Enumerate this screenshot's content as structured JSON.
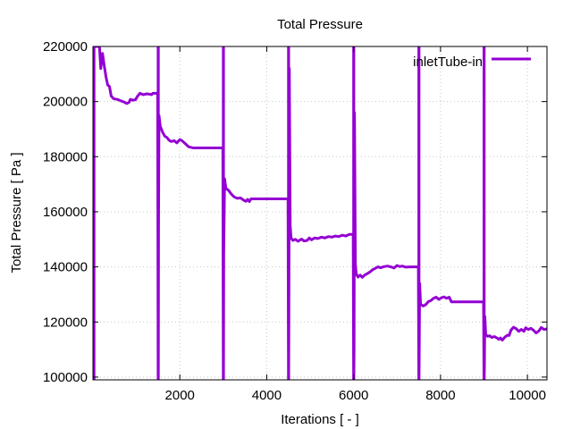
{
  "chart_data": {
    "type": "line",
    "title": "Total Pressure",
    "xlabel": "Iterations [ - ]",
    "ylabel": "Total Pressure [ Pa ]",
    "xlim": [
      0,
      10450
    ],
    "ylim": [
      99000,
      220000
    ],
    "xticks": [
      2000,
      4000,
      6000,
      8000,
      10000
    ],
    "xtick_labels": [
      "2000",
      "4000",
      "6000",
      "8000",
      "10000"
    ],
    "yticks": [
      100000,
      120000,
      140000,
      160000,
      180000,
      200000,
      220000
    ],
    "ytick_labels": [
      "100000",
      "120000",
      "140000",
      "160000",
      "180000",
      "200000",
      "220000"
    ],
    "grid": true,
    "legend_position": "top-right",
    "series": [
      {
        "name": "inletTube-in",
        "color": "#9400d3",
        "points": [
          [
            5,
            99000
          ],
          [
            5,
            220000
          ],
          [
            15,
            220000
          ],
          [
            15,
            99000
          ],
          [
            25,
            99000
          ],
          [
            25,
            220000
          ],
          [
            30,
            220000
          ],
          [
            150,
            220000
          ],
          [
            180,
            212000
          ],
          [
            220,
            217500
          ],
          [
            260,
            213000
          ],
          [
            300,
            209000
          ],
          [
            340,
            206000
          ],
          [
            380,
            205500
          ],
          [
            420,
            202000
          ],
          [
            480,
            201000
          ],
          [
            560,
            200800
          ],
          [
            640,
            200300
          ],
          [
            720,
            199800
          ],
          [
            780,
            199300
          ],
          [
            830,
            199700
          ],
          [
            860,
            200800
          ],
          [
            920,
            200500
          ],
          [
            980,
            200700
          ],
          [
            1020,
            201800
          ],
          [
            1080,
            203000
          ],
          [
            1160,
            202500
          ],
          [
            1240,
            202800
          ],
          [
            1300,
            202700
          ],
          [
            1350,
            202500
          ],
          [
            1380,
            203000
          ],
          [
            1450,
            203000
          ],
          [
            1490,
            203000
          ],
          [
            1500,
            99000
          ],
          [
            1500,
            220000
          ],
          [
            1505,
            220000
          ],
          [
            1505,
            99000
          ],
          [
            1510,
            155000
          ],
          [
            1520,
            195000
          ],
          [
            1550,
            191000
          ],
          [
            1600,
            189000
          ],
          [
            1650,
            187500
          ],
          [
            1700,
            187000
          ],
          [
            1750,
            186000
          ],
          [
            1800,
            185500
          ],
          [
            1870,
            185800
          ],
          [
            1930,
            185000
          ],
          [
            2000,
            186200
          ],
          [
            2050,
            185800
          ],
          [
            2120,
            184800
          ],
          [
            2200,
            183600
          ],
          [
            2300,
            183200
          ],
          [
            2500,
            183200
          ],
          [
            2700,
            183200
          ],
          [
            2990,
            183200
          ],
          [
            3000,
            99000
          ],
          [
            3000,
            220000
          ],
          [
            3005,
            220000
          ],
          [
            3005,
            99000
          ],
          [
            3010,
            145000
          ],
          [
            3030,
            172000
          ],
          [
            3060,
            168500
          ],
          [
            3120,
            167800
          ],
          [
            3180,
            166500
          ],
          [
            3250,
            165400
          ],
          [
            3320,
            164900
          ],
          [
            3400,
            165000
          ],
          [
            3460,
            164300
          ],
          [
            3520,
            163800
          ],
          [
            3560,
            164500
          ],
          [
            3600,
            163700
          ],
          [
            3640,
            164700
          ],
          [
            3800,
            164700
          ],
          [
            4100,
            164700
          ],
          [
            4490,
            164700
          ],
          [
            4500,
            99000
          ],
          [
            4500,
            220000
          ],
          [
            4505,
            220000
          ],
          [
            4505,
            99000
          ],
          [
            4510,
            123000
          ],
          [
            4520,
            212000
          ],
          [
            4540,
            155000
          ],
          [
            4560,
            150500
          ],
          [
            4600,
            149600
          ],
          [
            4660,
            150000
          ],
          [
            4720,
            149300
          ],
          [
            4800,
            150100
          ],
          [
            4860,
            149400
          ],
          [
            4930,
            149600
          ],
          [
            4980,
            150500
          ],
          [
            5030,
            149800
          ],
          [
            5100,
            150500
          ],
          [
            5180,
            150300
          ],
          [
            5260,
            150800
          ],
          [
            5340,
            150500
          ],
          [
            5420,
            151000
          ],
          [
            5500,
            150800
          ],
          [
            5580,
            151200
          ],
          [
            5660,
            151000
          ],
          [
            5740,
            151500
          ],
          [
            5820,
            151200
          ],
          [
            5900,
            151800
          ],
          [
            5990,
            151800
          ],
          [
            6000,
            99000
          ],
          [
            6000,
            220000
          ],
          [
            6005,
            220000
          ],
          [
            6005,
            99000
          ],
          [
            6010,
            110000
          ],
          [
            6020,
            196000
          ],
          [
            6040,
            141000
          ],
          [
            6060,
            137500
          ],
          [
            6100,
            136300
          ],
          [
            6150,
            137000
          ],
          [
            6200,
            136200
          ],
          [
            6260,
            137100
          ],
          [
            6320,
            137600
          ],
          [
            6380,
            138200
          ],
          [
            6440,
            139000
          ],
          [
            6500,
            139500
          ],
          [
            6560,
            140000
          ],
          [
            6620,
            139700
          ],
          [
            6700,
            140100
          ],
          [
            6780,
            140300
          ],
          [
            6860,
            140000
          ],
          [
            6930,
            139600
          ],
          [
            7000,
            140500
          ],
          [
            7060,
            140100
          ],
          [
            7120,
            140300
          ],
          [
            7200,
            139900
          ],
          [
            7300,
            140000
          ],
          [
            7490,
            140000
          ],
          [
            7500,
            99000
          ],
          [
            7500,
            220000
          ],
          [
            7505,
            220000
          ],
          [
            7505,
            99000
          ],
          [
            7510,
            110000
          ],
          [
            7520,
            134000
          ],
          [
            7540,
            126500
          ],
          [
            7600,
            125800
          ],
          [
            7660,
            126300
          ],
          [
            7720,
            127400
          ],
          [
            7780,
            127800
          ],
          [
            7840,
            128600
          ],
          [
            7900,
            129000
          ],
          [
            7960,
            128200
          ],
          [
            8020,
            128800
          ],
          [
            8080,
            129100
          ],
          [
            8140,
            128600
          ],
          [
            8200,
            129000
          ],
          [
            8250,
            127300
          ],
          [
            8400,
            127300
          ],
          [
            8700,
            127300
          ],
          [
            8990,
            127300
          ],
          [
            9000,
            99000
          ],
          [
            9000,
            220000
          ],
          [
            9005,
            220000
          ],
          [
            9005,
            99000
          ],
          [
            9010,
            104000
          ],
          [
            9020,
            122000
          ],
          [
            9040,
            115500
          ],
          [
            9080,
            114800
          ],
          [
            9130,
            115000
          ],
          [
            9180,
            114400
          ],
          [
            9240,
            114700
          ],
          [
            9300,
            114200
          ],
          [
            9340,
            113700
          ],
          [
            9380,
            114200
          ],
          [
            9420,
            113400
          ],
          [
            9480,
            114500
          ],
          [
            9540,
            115200
          ],
          [
            9580,
            115100
          ],
          [
            9620,
            117000
          ],
          [
            9680,
            118100
          ],
          [
            9740,
            117600
          ],
          [
            9800,
            116600
          ],
          [
            9860,
            117300
          ],
          [
            9920,
            116600
          ],
          [
            9960,
            117900
          ],
          [
            10020,
            117300
          ],
          [
            10080,
            117700
          ],
          [
            10140,
            117000
          ],
          [
            10200,
            116000
          ],
          [
            10260,
            116700
          ],
          [
            10320,
            118000
          ],
          [
            10380,
            117300
          ],
          [
            10450,
            117500
          ]
        ]
      }
    ]
  }
}
